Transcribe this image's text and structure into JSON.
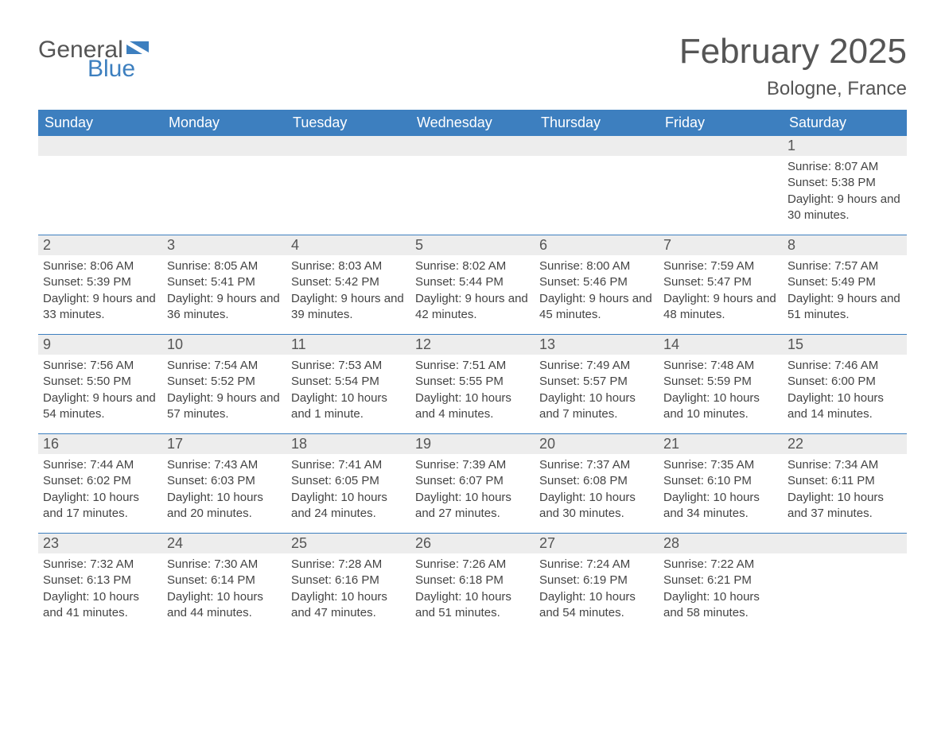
{
  "logo": {
    "text1": "General",
    "text2": "Blue"
  },
  "title": "February 2025",
  "location": "Bologne, France",
  "colors": {
    "header_bg": "#3d7fbf",
    "header_text": "#ffffff",
    "daynum_bg": "#ededed",
    "text": "#444444",
    "logo_gray": "#555555",
    "logo_blue": "#3d7fbf",
    "border": "#3d7fbf"
  },
  "typography": {
    "title_fontsize": 44,
    "location_fontsize": 24,
    "weekday_fontsize": 18,
    "daynum_fontsize": 18,
    "body_fontsize": 15
  },
  "weekdays": [
    "Sunday",
    "Monday",
    "Tuesday",
    "Wednesday",
    "Thursday",
    "Friday",
    "Saturday"
  ],
  "weeks": [
    {
      "border": false,
      "days": [
        {
          "num": "",
          "sunrise": "",
          "sunset": "",
          "daylight": ""
        },
        {
          "num": "",
          "sunrise": "",
          "sunset": "",
          "daylight": ""
        },
        {
          "num": "",
          "sunrise": "",
          "sunset": "",
          "daylight": ""
        },
        {
          "num": "",
          "sunrise": "",
          "sunset": "",
          "daylight": ""
        },
        {
          "num": "",
          "sunrise": "",
          "sunset": "",
          "daylight": ""
        },
        {
          "num": "",
          "sunrise": "",
          "sunset": "",
          "daylight": ""
        },
        {
          "num": "1",
          "sunrise": "Sunrise: 8:07 AM",
          "sunset": "Sunset: 5:38 PM",
          "daylight": "Daylight: 9 hours and 30 minutes."
        }
      ]
    },
    {
      "border": true,
      "days": [
        {
          "num": "2",
          "sunrise": "Sunrise: 8:06 AM",
          "sunset": "Sunset: 5:39 PM",
          "daylight": "Daylight: 9 hours and 33 minutes."
        },
        {
          "num": "3",
          "sunrise": "Sunrise: 8:05 AM",
          "sunset": "Sunset: 5:41 PM",
          "daylight": "Daylight: 9 hours and 36 minutes."
        },
        {
          "num": "4",
          "sunrise": "Sunrise: 8:03 AM",
          "sunset": "Sunset: 5:42 PM",
          "daylight": "Daylight: 9 hours and 39 minutes."
        },
        {
          "num": "5",
          "sunrise": "Sunrise: 8:02 AM",
          "sunset": "Sunset: 5:44 PM",
          "daylight": "Daylight: 9 hours and 42 minutes."
        },
        {
          "num": "6",
          "sunrise": "Sunrise: 8:00 AM",
          "sunset": "Sunset: 5:46 PM",
          "daylight": "Daylight: 9 hours and 45 minutes."
        },
        {
          "num": "7",
          "sunrise": "Sunrise: 7:59 AM",
          "sunset": "Sunset: 5:47 PM",
          "daylight": "Daylight: 9 hours and 48 minutes."
        },
        {
          "num": "8",
          "sunrise": "Sunrise: 7:57 AM",
          "sunset": "Sunset: 5:49 PM",
          "daylight": "Daylight: 9 hours and 51 minutes."
        }
      ]
    },
    {
      "border": true,
      "days": [
        {
          "num": "9",
          "sunrise": "Sunrise: 7:56 AM",
          "sunset": "Sunset: 5:50 PM",
          "daylight": "Daylight: 9 hours and 54 minutes."
        },
        {
          "num": "10",
          "sunrise": "Sunrise: 7:54 AM",
          "sunset": "Sunset: 5:52 PM",
          "daylight": "Daylight: 9 hours and 57 minutes."
        },
        {
          "num": "11",
          "sunrise": "Sunrise: 7:53 AM",
          "sunset": "Sunset: 5:54 PM",
          "daylight": "Daylight: 10 hours and 1 minute."
        },
        {
          "num": "12",
          "sunrise": "Sunrise: 7:51 AM",
          "sunset": "Sunset: 5:55 PM",
          "daylight": "Daylight: 10 hours and 4 minutes."
        },
        {
          "num": "13",
          "sunrise": "Sunrise: 7:49 AM",
          "sunset": "Sunset: 5:57 PM",
          "daylight": "Daylight: 10 hours and 7 minutes."
        },
        {
          "num": "14",
          "sunrise": "Sunrise: 7:48 AM",
          "sunset": "Sunset: 5:59 PM",
          "daylight": "Daylight: 10 hours and 10 minutes."
        },
        {
          "num": "15",
          "sunrise": "Sunrise: 7:46 AM",
          "sunset": "Sunset: 6:00 PM",
          "daylight": "Daylight: 10 hours and 14 minutes."
        }
      ]
    },
    {
      "border": true,
      "days": [
        {
          "num": "16",
          "sunrise": "Sunrise: 7:44 AM",
          "sunset": "Sunset: 6:02 PM",
          "daylight": "Daylight: 10 hours and 17 minutes."
        },
        {
          "num": "17",
          "sunrise": "Sunrise: 7:43 AM",
          "sunset": "Sunset: 6:03 PM",
          "daylight": "Daylight: 10 hours and 20 minutes."
        },
        {
          "num": "18",
          "sunrise": "Sunrise: 7:41 AM",
          "sunset": "Sunset: 6:05 PM",
          "daylight": "Daylight: 10 hours and 24 minutes."
        },
        {
          "num": "19",
          "sunrise": "Sunrise: 7:39 AM",
          "sunset": "Sunset: 6:07 PM",
          "daylight": "Daylight: 10 hours and 27 minutes."
        },
        {
          "num": "20",
          "sunrise": "Sunrise: 7:37 AM",
          "sunset": "Sunset: 6:08 PM",
          "daylight": "Daylight: 10 hours and 30 minutes."
        },
        {
          "num": "21",
          "sunrise": "Sunrise: 7:35 AM",
          "sunset": "Sunset: 6:10 PM",
          "daylight": "Daylight: 10 hours and 34 minutes."
        },
        {
          "num": "22",
          "sunrise": "Sunrise: 7:34 AM",
          "sunset": "Sunset: 6:11 PM",
          "daylight": "Daylight: 10 hours and 37 minutes."
        }
      ]
    },
    {
      "border": true,
      "days": [
        {
          "num": "23",
          "sunrise": "Sunrise: 7:32 AM",
          "sunset": "Sunset: 6:13 PM",
          "daylight": "Daylight: 10 hours and 41 minutes."
        },
        {
          "num": "24",
          "sunrise": "Sunrise: 7:30 AM",
          "sunset": "Sunset: 6:14 PM",
          "daylight": "Daylight: 10 hours and 44 minutes."
        },
        {
          "num": "25",
          "sunrise": "Sunrise: 7:28 AM",
          "sunset": "Sunset: 6:16 PM",
          "daylight": "Daylight: 10 hours and 47 minutes."
        },
        {
          "num": "26",
          "sunrise": "Sunrise: 7:26 AM",
          "sunset": "Sunset: 6:18 PM",
          "daylight": "Daylight: 10 hours and 51 minutes."
        },
        {
          "num": "27",
          "sunrise": "Sunrise: 7:24 AM",
          "sunset": "Sunset: 6:19 PM",
          "daylight": "Daylight: 10 hours and 54 minutes."
        },
        {
          "num": "28",
          "sunrise": "Sunrise: 7:22 AM",
          "sunset": "Sunset: 6:21 PM",
          "daylight": "Daylight: 10 hours and 58 minutes."
        },
        {
          "num": "",
          "sunrise": "",
          "sunset": "",
          "daylight": ""
        }
      ]
    }
  ]
}
